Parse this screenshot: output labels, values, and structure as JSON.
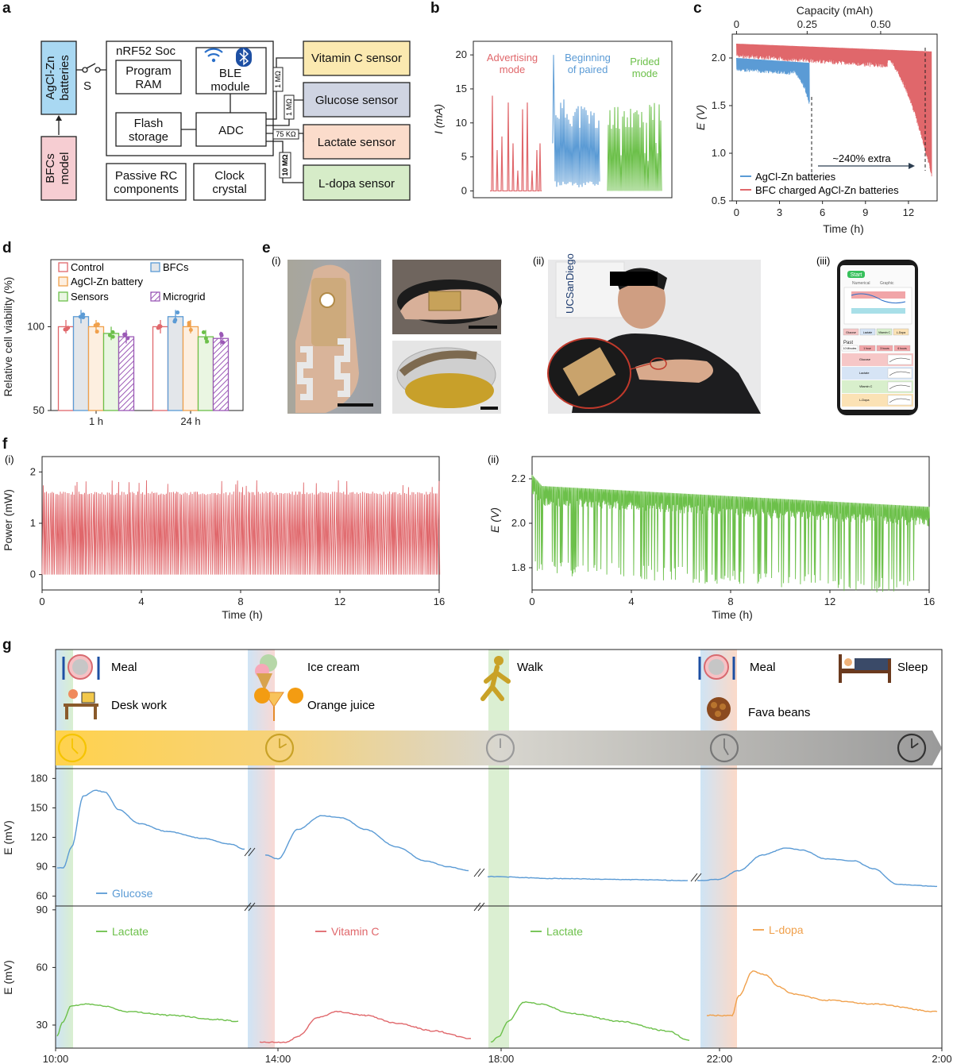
{
  "panel_labels": {
    "a": "a",
    "b": "b",
    "c": "c",
    "d": "d",
    "e": "e",
    "f": "f",
    "g": "g"
  },
  "panel_a": {
    "batteries": "AgCl-Zn batteries",
    "bfcs": "BFCs model",
    "switch": "S",
    "soc": "nRF52 Soc",
    "ram": "Program RAM",
    "ble": "BLE module",
    "flash": "Flash storage",
    "adc": "ADC",
    "passive": "Passive RC components",
    "clock": "Clock crystal",
    "sensors": [
      "Vitamin C sensor",
      "Glucose sensor",
      "Lactate sensor",
      "L-dopa sensor"
    ],
    "resistors": [
      "1 MΩ",
      "1 MΩ",
      "75 KΩ",
      "10 MΩ"
    ],
    "colors": {
      "batteries": "#a9d8f2",
      "bfcs": "#f6cdd2",
      "vitc": "#fbe9b0",
      "glucose": "#cfd4e2",
      "lactate": "#fbdccb",
      "ldopa": "#d6ecc8"
    }
  },
  "panel_b": {
    "chart_data": {
      "type": "line",
      "ylabel": "I (mA)",
      "yticks": [
        0,
        5,
        10,
        15,
        20
      ],
      "ylim": [
        -1,
        22
      ],
      "series": [
        {
          "name": "Advertising mode",
          "color": "#e0676b"
        },
        {
          "name": "Beginning of paired",
          "color": "#5b9bd5"
        },
        {
          "name": "Prided mode",
          "color": "#6cc04a"
        }
      ]
    }
  },
  "panel_c": {
    "chart_data": {
      "type": "line",
      "xlabel": "Time (h)",
      "ylabel": "E (V)",
      "top_xlabel": "Capacity (mAh)",
      "xticks": [
        0,
        3,
        6,
        9,
        12
      ],
      "top_xticks": [
        "0",
        "0.25",
        "0.50"
      ],
      "yticks": [
        "0.5",
        "1.0",
        "1.5",
        "2.0"
      ],
      "xlim": [
        -0.3,
        14
      ],
      "ylim": [
        0.5,
        2.25
      ],
      "annotation": "~240% extra",
      "series": [
        {
          "name": "AgCl-Zn batteries",
          "color": "#5b9bd5",
          "end_h": 5.1
        },
        {
          "name": "BFC charged AgCl-Zn batteries",
          "color": "#e0676b",
          "end_h": 13.6
        }
      ]
    }
  },
  "panel_d": {
    "chart_data": {
      "type": "bar",
      "ylabel": "Relative cell viability (%)",
      "categories": [
        "1 h",
        "24 h"
      ],
      "yticks": [
        50,
        100
      ],
      "ylim": [
        50,
        140
      ],
      "series": [
        {
          "name": "Control",
          "values": [
            100,
            100
          ],
          "color": "#e0676b",
          "fill": "#ffffff"
        },
        {
          "name": "BFCs",
          "values": [
            106,
            106
          ],
          "color": "#5b9bd5",
          "fill": "#e3e6ea"
        },
        {
          "name": "AgCl-Zn battery",
          "values": [
            100,
            100
          ],
          "color": "#f0a04b",
          "fill": "#fdefe0"
        },
        {
          "name": "Sensors",
          "values": [
            96,
            94
          ],
          "color": "#6cc04a",
          "fill": "#eaf6e2"
        },
        {
          "name": "Microgrid",
          "values": [
            94,
            93
          ],
          "color": "#9b59b6",
          "fill": "hatch"
        }
      ]
    }
  },
  "panel_e": {
    "sub": [
      "(i)",
      "(ii)",
      "(iii)"
    ],
    "phone": {
      "start": "Start",
      "tabs": [
        "Numerical",
        "Graphic"
      ],
      "past": "Past",
      "ranges": [
        "10 Minutes",
        "1 hour",
        "3 hours",
        "6 hours"
      ],
      "chips": [
        "Glucose",
        "Lactate",
        "Vitamin C",
        "L-Dopa"
      ],
      "rows": [
        "Glucose",
        "Lactate",
        "Vitamin C",
        "L-Dopa"
      ]
    },
    "banner": "UCSanDiego"
  },
  "panel_f": {
    "sub": [
      "(i)",
      "(ii)"
    ],
    "chart_data": [
      {
        "type": "line",
        "xlabel": "Time (h)",
        "ylabel": "Power (mW)",
        "xticks": [
          0,
          4,
          8,
          12,
          16
        ],
        "yticks": [
          0,
          1,
          2
        ],
        "xlim": [
          0,
          16
        ],
        "ylim": [
          -0.3,
          2.3
        ],
        "color": "#e0676b"
      },
      {
        "type": "line",
        "xlabel": "Time (h)",
        "ylabel": "E (V)",
        "xticks": [
          0,
          4,
          8,
          12,
          16
        ],
        "yticks": [
          "1.8",
          "2.0",
          "2.2"
        ],
        "xlim": [
          0,
          16
        ],
        "ylim": [
          1.7,
          2.3
        ],
        "color": "#6cc04a"
      }
    ]
  },
  "panel_g": {
    "events": [
      "Meal",
      "Desk work",
      "Ice cream",
      "Orange juice",
      "Walk",
      "Meal",
      "Fava beans",
      "Sleep"
    ],
    "chart_data": [
      {
        "type": "line",
        "ylabel": "E (mV)",
        "yticks": [
          60,
          90,
          120,
          150,
          180
        ],
        "ylim": [
          50,
          190
        ],
        "series": [
          {
            "name": "Glucose",
            "color": "#5b9bd5"
          }
        ]
      },
      {
        "type": "line",
        "ylabel": "E (mV)",
        "yticks": [
          30,
          60,
          90
        ],
        "ylim": [
          18,
          92
        ],
        "series": [
          {
            "name": "Lactate",
            "color": "#6cc04a"
          },
          {
            "name": "Vitamin C",
            "color": "#e0676b"
          },
          {
            "name": "Lactate",
            "color": "#6cc04a"
          },
          {
            "name": "L-dopa",
            "color": "#f0a04b"
          }
        ]
      }
    ],
    "xticks": [
      "10:00",
      "14:00",
      "18:00",
      "22:00",
      "2:00"
    ]
  }
}
